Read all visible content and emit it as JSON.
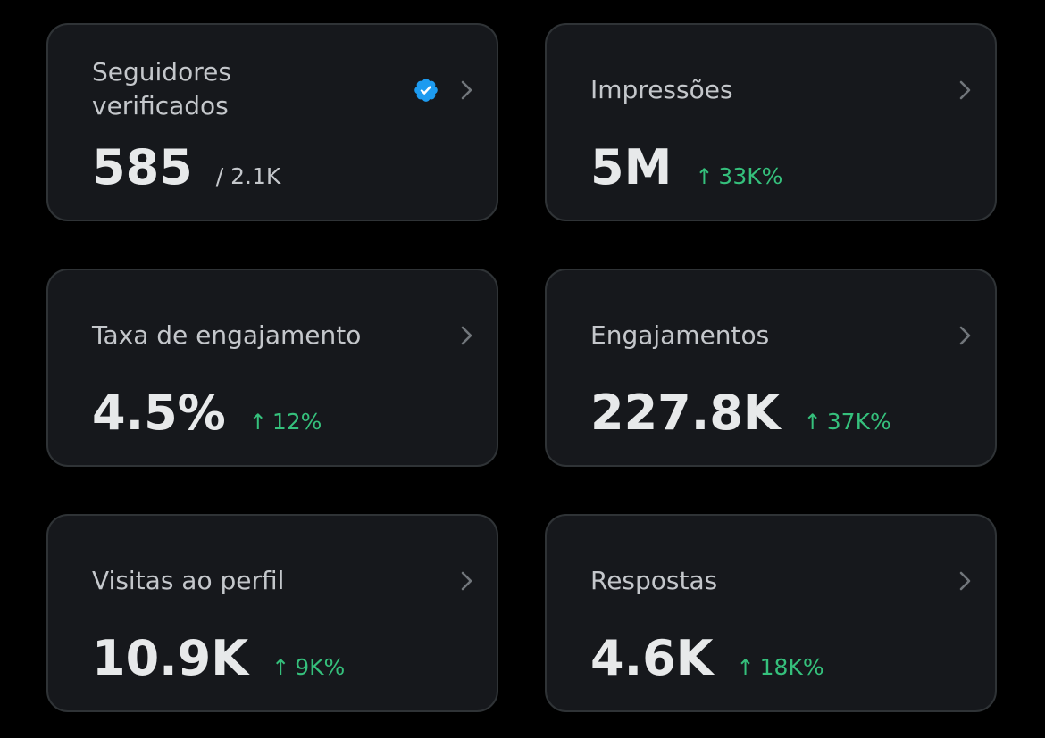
{
  "colors": {
    "background": "#000000",
    "card_background": "#16181c",
    "card_border": "#2f3336",
    "title_text": "#c4c7cb",
    "value_text": "#e7e9ea",
    "positive_change": "#35c07c",
    "verified_badge": "#1d9bf0",
    "chevron": "#71767b"
  },
  "icons": {
    "verified": "verified-badge-icon",
    "chevron": "chevron-right-icon",
    "arrow": "arrow-up-icon"
  },
  "cards": [
    {
      "title": "Seguidores verificados",
      "value": "585",
      "secondary": "/ 2.1K",
      "verified_badge": true
    },
    {
      "title": "Impressões",
      "value": "5M",
      "change_arrow": "↑",
      "change": "33K%"
    },
    {
      "title": "Taxa de engajamento",
      "value": "4.5%",
      "change_arrow": "↑",
      "change": "12%"
    },
    {
      "title": "Engajamentos",
      "value": "227.8K",
      "change_arrow": "↑",
      "change": "37K%"
    },
    {
      "title": "Visitas ao perfil",
      "value": "10.9K",
      "change_arrow": "↑",
      "change": "9K%"
    },
    {
      "title": "Respostas",
      "value": "4.6K",
      "change_arrow": "↑",
      "change": "18K%"
    }
  ]
}
